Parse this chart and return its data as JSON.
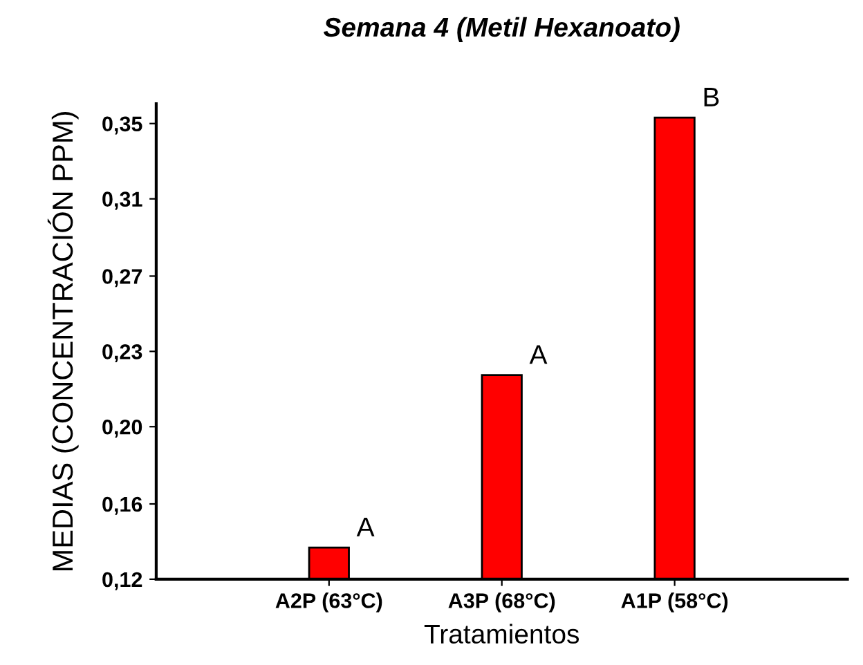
{
  "chart_data": {
    "type": "bar",
    "title": "Semana 4 (Metil Hexanoato)",
    "xlabel": "Tratamientos",
    "ylabel": "MEDIAS (CONCENTRACIÓN PPM)",
    "categories": [
      "A2P (63°C)",
      "A3P (68°C)",
      "A1P (58°C)"
    ],
    "values": [
      0.136,
      0.223,
      0.353
    ],
    "color": "#ff0000",
    "ylim": [
      0.12,
      0.36
    ],
    "yticks": [
      {
        "value": 0.12,
        "label": "0,12"
      },
      {
        "value": 0.158,
        "label": "0,16"
      },
      {
        "value": 0.197,
        "label": "0,20"
      },
      {
        "value": 0.235,
        "label": "0,23"
      },
      {
        "value": 0.273,
        "label": "0,27"
      },
      {
        "value": 0.312,
        "label": "0,31"
      },
      {
        "value": 0.35,
        "label": "0,35"
      }
    ],
    "annotations": [
      {
        "text": "A",
        "x": "A2P (63°C)",
        "y": 0.136
      },
      {
        "text": "A",
        "x": "A3P (68°C)",
        "y": 0.223
      },
      {
        "text": "B",
        "x": "A1P (58°C)",
        "y": 0.353
      }
    ],
    "grid": false,
    "legend": false
  }
}
